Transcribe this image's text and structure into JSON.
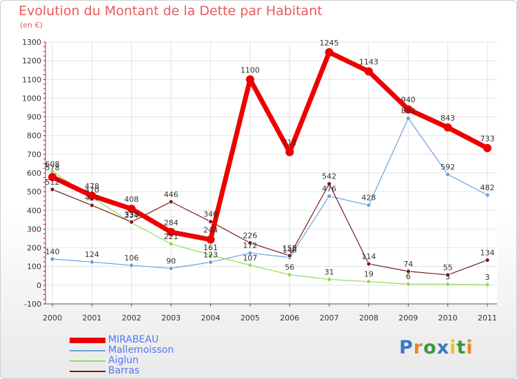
{
  "title": "Evolution du Montant de la Dette par Habitant",
  "subtitle": "(en €)",
  "chart_data": {
    "type": "line",
    "title": "Evolution du Montant de la Dette par Habitant",
    "subtitle": "(en €)",
    "x": [
      "2000",
      "2001",
      "2002",
      "2003",
      "2004",
      "2005",
      "2006",
      "2007",
      "2008",
      "2009",
      "2010",
      "2011"
    ],
    "ylim": [
      -100,
      1300
    ],
    "yticks": [
      "-100",
      "0",
      "100",
      "200",
      "300",
      "400",
      "500",
      "600",
      "700",
      "800",
      "900",
      "1000",
      "1100",
      "1200",
      "1300"
    ],
    "grid": true,
    "legend_position": "bottom-left",
    "series": [
      {
        "name": "MIRABEAU",
        "color": "#ee0000",
        "values": [
          578,
          478,
          408,
          284,
          244,
          1100,
          712,
          1245,
          1143,
          940,
          843,
          733
        ],
        "labels": [
          "578",
          "478",
          "408",
          "284",
          "244",
          "1100",
          "712",
          "1245",
          "1143",
          "940",
          "843",
          "733"
        ]
      },
      {
        "name": "Mallemoisson",
        "color": "#6aa0d8",
        "values": [
          140,
          124,
          106,
          90,
          123,
          172,
          148,
          476,
          428,
          892,
          592,
          482
        ],
        "labels": [
          "140",
          "124",
          "106",
          "90",
          "123",
          "172",
          "148",
          "476",
          "428",
          "892",
          "592",
          "482"
        ]
      },
      {
        "name": "Aiglun",
        "color": "#8fdc55",
        "values": [
          608,
          470,
          334,
          221,
          161,
          107,
          56,
          31,
          19,
          6,
          5,
          3
        ],
        "labels": [
          "608",
          "470",
          "334",
          "221",
          "161",
          "107",
          "56",
          "31",
          "19",
          "6",
          "5",
          "3"
        ]
      },
      {
        "name": "Barras",
        "color": "#7a1818",
        "values": [
          512,
          427,
          338,
          446,
          340,
          226,
          158,
          542,
          114,
          74,
          55,
          134
        ],
        "labels": [
          "512",
          "427",
          "338",
          "446",
          "340",
          "226",
          "158",
          "542",
          "114",
          "74",
          "55",
          "134"
        ]
      }
    ]
  },
  "logo": {
    "letters": [
      "P",
      "r",
      "o",
      "x",
      "i",
      "t",
      "i"
    ],
    "colors": [
      "#3a78c8",
      "#e8862a",
      "#3a9b3a",
      "#3a78c8",
      "#e8c32a",
      "#3a9b3a",
      "#e8862a"
    ]
  }
}
